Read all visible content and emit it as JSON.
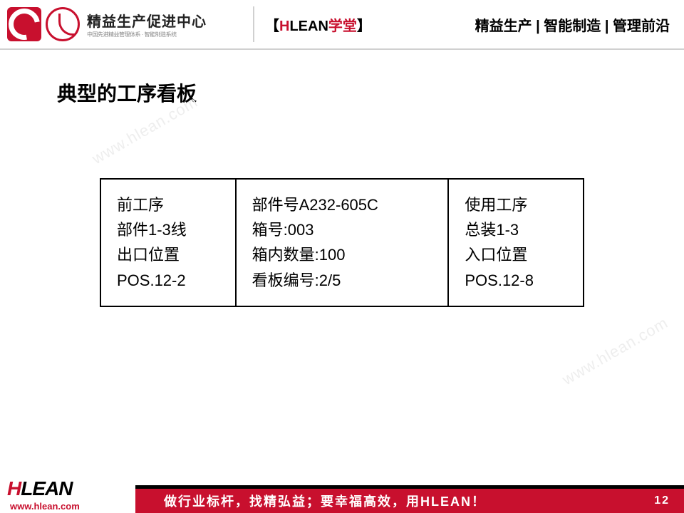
{
  "header": {
    "logo_main": "精益生产促进中心",
    "logo_sub": "中国先进精益管理体系 · 智能制造系统",
    "center_bracket_l": "【",
    "center_h": "H",
    "center_lean": "LEAN",
    "center_xt": "学堂",
    "center_bracket_r": "】",
    "right": "精益生产 | 智能制造 | 管理前沿"
  },
  "watermark": "www.hlean.com",
  "title": "典型的工序看板",
  "kanban": {
    "col1": {
      "l1": "前工序",
      "l2": "部件1-3线",
      "l3": "出口位置",
      "l4": "POS.12-2"
    },
    "col2": {
      "l1": "部件号A232-605C",
      "l2": "箱号:003",
      "l3": "箱内数量:100",
      "l4": "看板编号:2/5"
    },
    "col3": {
      "l1": "使用工序",
      "l2": "总装1-3",
      "l3": "入口位置",
      "l4": "POS.12-8"
    }
  },
  "footer": {
    "logo_h": "H",
    "logo_lean": "LEAN",
    "url": "www.hlean.com",
    "slogan": "做行业标杆，找精弘益；要幸福高效，用HLEAN！",
    "page": "12"
  }
}
